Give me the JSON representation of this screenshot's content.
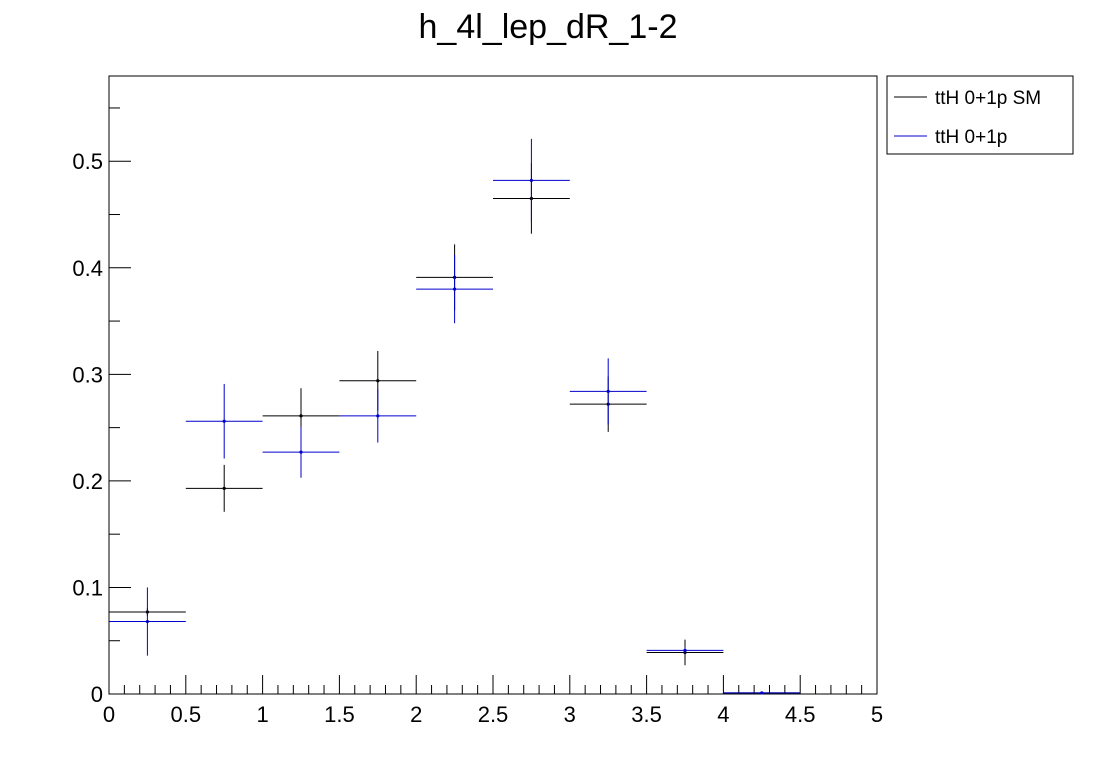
{
  "chart_data": {
    "type": "scatter",
    "title": "h_4l_lep_dR_1-2",
    "xlabel": "",
    "ylabel": "",
    "xlim": [
      0,
      5
    ],
    "ylim": [
      0,
      0.58
    ],
    "grid": false,
    "legend_position": "top-right outside plot",
    "x_tick_labels": [
      "0",
      "0.5",
      "1",
      "1.5",
      "2",
      "2.5",
      "3",
      "3.5",
      "4",
      "4.5",
      "5"
    ],
    "y_tick_labels": [
      "0",
      "0.1",
      "0.2",
      "0.3",
      "0.4",
      "0.5"
    ],
    "bin_width": 0.5,
    "x": [
      0.25,
      0.75,
      1.25,
      1.75,
      2.25,
      2.75,
      3.25,
      3.75,
      4.25
    ],
    "series": [
      {
        "name": "ttH 0+1p SM",
        "color": "#000000",
        "values": [
          0.077,
          0.193,
          0.261,
          0.294,
          0.391,
          0.465,
          0.272,
          0.039,
          0.001
        ],
        "errors": [
          0.004,
          0.022,
          0.026,
          0.028,
          0.031,
          0.033,
          0.026,
          0.012,
          0.001
        ]
      },
      {
        "name": "ttH 0+1p",
        "color": "#0000cc",
        "values": [
          0.068,
          0.256,
          0.227,
          0.261,
          0.38,
          0.482,
          0.284,
          0.041,
          0.001
        ],
        "errors": [
          0.032,
          0.035,
          0.024,
          0.025,
          0.032,
          0.039,
          0.031,
          0.003,
          0.001
        ]
      }
    ]
  }
}
